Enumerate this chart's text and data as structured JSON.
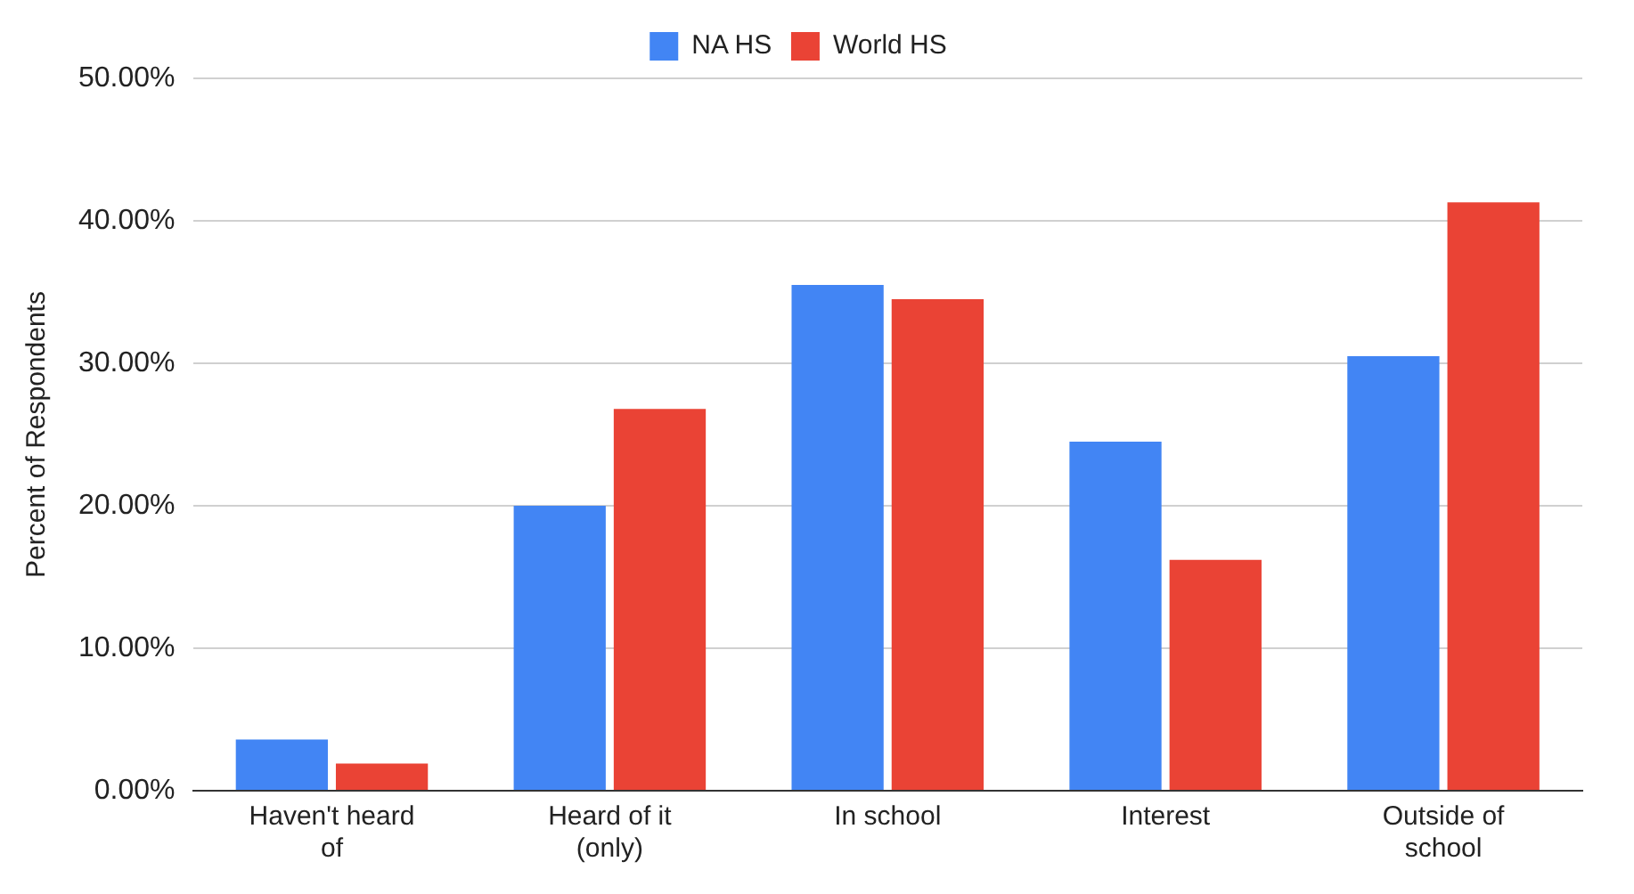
{
  "chart_data": {
    "type": "bar",
    "ylabel": "Percent of Respondents",
    "categories": [
      "Haven't heard of",
      "Heard of it (only)",
      "In school",
      "Interest",
      "Outside of school"
    ],
    "series": [
      {
        "name": "NA HS",
        "color": "#4285f4",
        "values": [
          3.6,
          20.0,
          35.5,
          24.5,
          30.5
        ]
      },
      {
        "name": "World HS",
        "color": "#ea4335",
        "values": [
          1.9,
          26.8,
          34.5,
          16.2,
          41.3
        ]
      }
    ],
    "ylim": [
      0,
      50
    ],
    "yticks": [
      {
        "value": 0,
        "label": "0.00%"
      },
      {
        "value": 10,
        "label": "10.00%"
      },
      {
        "value": 20,
        "label": "20.00%"
      },
      {
        "value": 30,
        "label": "30.00%"
      },
      {
        "value": 40,
        "label": "40.00%"
      },
      {
        "value": 50,
        "label": "50.00%"
      }
    ],
    "grid": "y",
    "legend": "top"
  }
}
